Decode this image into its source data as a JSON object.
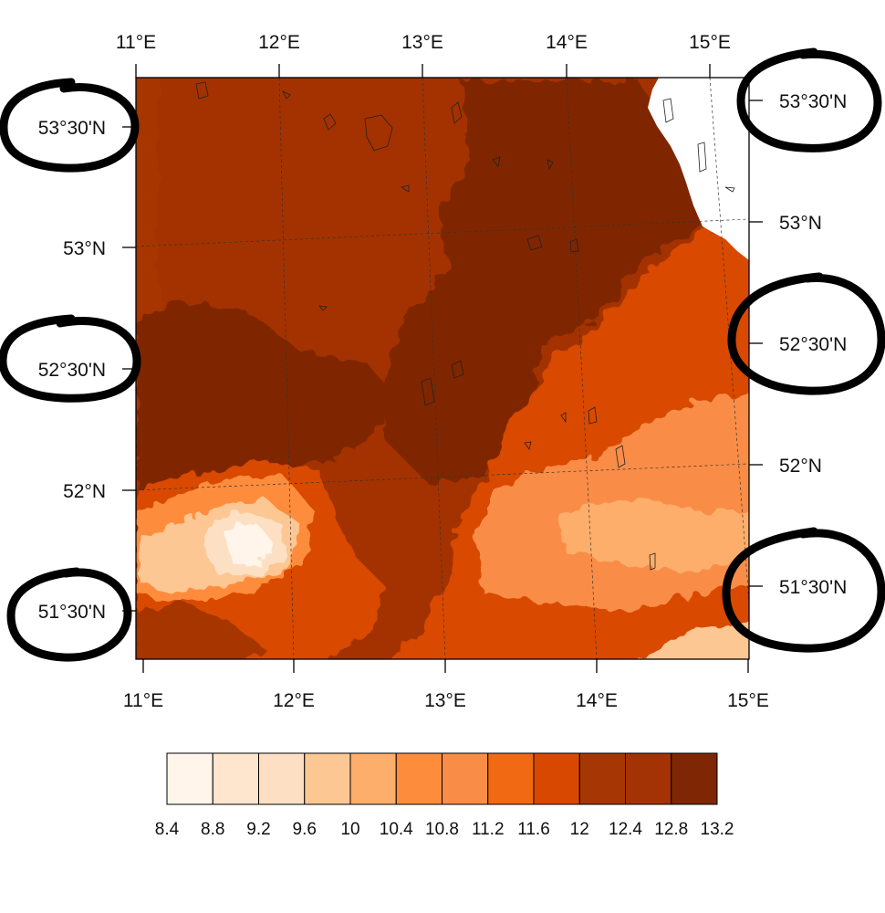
{
  "map": {
    "top_lon_labels": [
      "11°E",
      "12°E",
      "13°E",
      "14°E",
      "15°E"
    ],
    "bottom_lon_labels": [
      "11°E",
      "12°E",
      "13°E",
      "14°E",
      "15°E"
    ],
    "left_lat_labels": [
      "53°30'N",
      "53°N",
      "52°30'N",
      "52°N",
      "51°30'N"
    ],
    "right_lat_labels": [
      "53°30'N",
      "53°N",
      "52°30'N",
      "52°N",
      "51°30'N"
    ],
    "colors": {
      "background": "#ffffff",
      "frame": "#000000",
      "no_data": "#ffffff",
      "annotation_circle": "#000000"
    }
  },
  "colorbar": {
    "tick_labels": [
      "8.4",
      "8.8",
      "9.2",
      "9.6",
      "10",
      "10.4",
      "10.8",
      "11.2",
      "11.6",
      "12",
      "12.4",
      "12.8",
      "13.2"
    ],
    "colors": [
      "#fff5eb",
      "#fee6ce",
      "#fde0c4",
      "#fdc793",
      "#fdae6b",
      "#fd8d3c",
      "#f98d47",
      "#f16913",
      "#d94801",
      "#a63603",
      "#a33305",
      "#7f2704"
    ]
  }
}
